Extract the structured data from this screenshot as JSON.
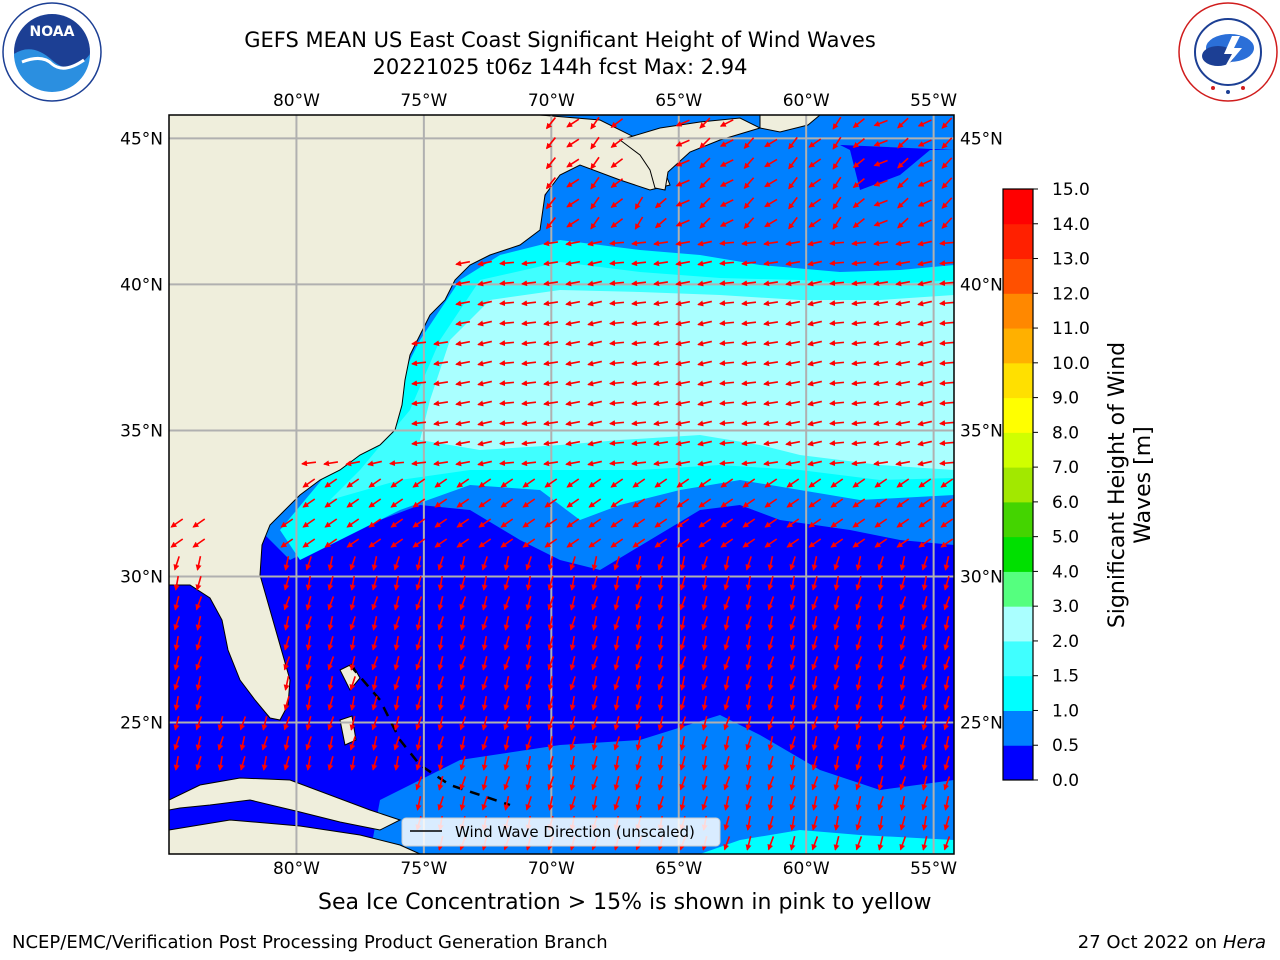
{
  "title": {
    "line1": "GEFS MEAN US East Coast Significant Height of Wind Waves",
    "line2": "20221025 t06z 144h fcst   Max: 2.94"
  },
  "logos": {
    "noaa_text": "NOAA",
    "noaa_ring_text": "NATIONAL OCEANIC AND ATMOSPHERIC ADMINISTRATION · U.S. DEPARTMENT OF COMMERCE",
    "nws_ring_text": "NATIONAL WEATHER SERVICE"
  },
  "map": {
    "lon_min": -85,
    "lon_max": -54.2,
    "lat_min": 20.5,
    "lat_max": 45.8,
    "lon_ticks": [
      {
        "lon": -80,
        "label": "80°W"
      },
      {
        "lon": -75,
        "label": "75°W"
      },
      {
        "lon": -70,
        "label": "70°W"
      },
      {
        "lon": -65,
        "label": "65°W"
      },
      {
        "lon": -60,
        "label": "60°W"
      },
      {
        "lon": -55,
        "label": "55°W"
      }
    ],
    "lat_ticks": [
      {
        "lat": 45,
        "label": "45°N"
      },
      {
        "lat": 40,
        "label": "40°N"
      },
      {
        "lat": 35,
        "label": "35°N"
      },
      {
        "lat": 30,
        "label": "30°N"
      },
      {
        "lat": 25,
        "label": "25°N"
      }
    ],
    "land_color": "#efeedc",
    "grid_color": "#b0b0b0",
    "arrow_color": "#ff0000",
    "legend_label": "Wind Wave Direction (unscaled)",
    "note": "Sea Ice Concentration > 15% is shown in pink to yellow"
  },
  "colorbar": {
    "label_line1": "Significant Height of Wind",
    "label_line2": "Waves [m]",
    "bounds": [
      "0.0",
      "0.5",
      "1.0",
      "1.5",
      "2.0",
      "3.0",
      "4.0",
      "5.0",
      "6.0",
      "7.0",
      "8.0",
      "9.0",
      "10.0",
      "11.0",
      "12.0",
      "13.0",
      "14.0",
      "15.0"
    ],
    "colors": [
      "#0000ff",
      "#0080ff",
      "#00ffff",
      "#40ffff",
      "#aaffff",
      "#55ff7f",
      "#00e000",
      "#44d400",
      "#a2e800",
      "#d0ff00",
      "#ffff00",
      "#ffe000",
      "#ffb000",
      "#ff8800",
      "#ff5000",
      "#ff2000",
      "#ff0000"
    ]
  },
  "footer": {
    "left": "NCEP/EMC/Verification Post Processing Product Generation Branch",
    "right_date": "27 Oct 2022 on",
    "right_host": "Hera"
  }
}
